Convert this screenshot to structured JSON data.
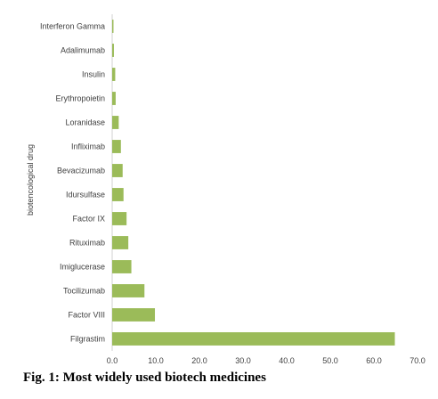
{
  "caption": "Fig. 1: Most widely used biotech medicines",
  "chart_data": {
    "type": "bar",
    "orientation": "horizontal",
    "title": "",
    "xlabel": "",
    "ylabel": "biotencological drug",
    "categories": [
      "Interferon Gamma",
      "Adalimumab",
      "Insulin",
      "Erythropoietin",
      "Loranidase",
      "Infliximab",
      "Bevacizumab",
      "Idursulfase",
      "Factor IX",
      "Rituximab",
      "Imiglucerase",
      "Tocilizumab",
      "Factor VIII",
      "Filgrastim"
    ],
    "values": [
      0.3,
      0.4,
      0.7,
      0.8,
      1.5,
      2.0,
      2.4,
      2.6,
      3.3,
      3.7,
      4.4,
      7.4,
      9.8,
      64.8
    ],
    "xlim": [
      0,
      70
    ],
    "xticks": [
      "0.0",
      "10.0",
      "20.0",
      "30.0",
      "40.0",
      "50.0",
      "60.0",
      "70.0"
    ],
    "bar_color": "#9bbb59",
    "grid": false
  }
}
